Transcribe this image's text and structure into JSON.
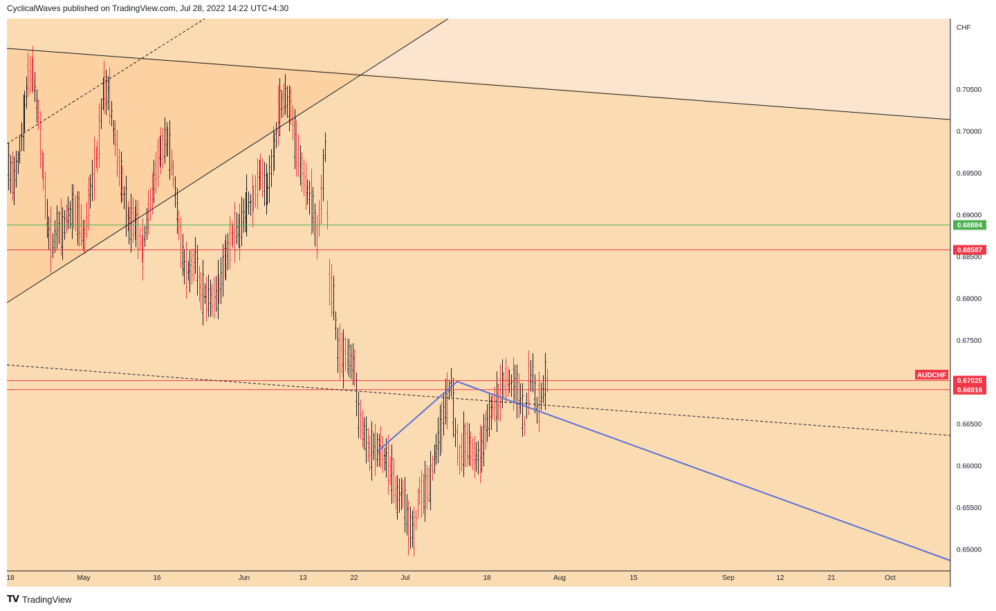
{
  "header": {
    "text": "CyclicalWaves published on TradingView.com, Jul 28, 2022 14:22 UTC+4:30"
  },
  "footer": {
    "logo_text": "TradingView"
  },
  "chart_data": {
    "type": "candlestick",
    "symbol": "AUDCHF",
    "currency_label": "CHF",
    "y_ticks": [
      "0.70500",
      "0.70000",
      "0.69500",
      "0.69000",
      "0.68500",
      "0.68000",
      "0.67500",
      "0.67000",
      "0.66500",
      "0.66000",
      "0.65500",
      "0.65000"
    ],
    "y_tick_values": [
      0.705,
      0.7,
      0.695,
      0.69,
      0.685,
      0.68,
      0.675,
      0.67,
      0.665,
      0.66,
      0.655,
      0.65
    ],
    "ylim": [
      0.6475,
      0.7135
    ],
    "x_ticks": [
      "18",
      "May",
      "16",
      "Jun",
      "13",
      "22",
      "Jul",
      "18",
      "Aug",
      "15",
      "Sep",
      "12",
      "21",
      "Oct"
    ],
    "grid": false,
    "price_levels": [
      {
        "label": "0.68884",
        "value": 0.68884,
        "color": "#4caf50"
      },
      {
        "label": "0.68587",
        "value": 0.68587,
        "color": "#f23645"
      },
      {
        "label": "0.67025",
        "value": 0.67025,
        "color": "#f23645"
      },
      {
        "label": "0.66916",
        "value": 0.66916,
        "color": "#f23645"
      }
    ],
    "symbol_badge_color": "#f23645",
    "up_color": "#131722",
    "down_color": "#f23645",
    "background_color": "#fbdcb2",
    "triangle_fill": "#fcd2a2",
    "upper_zone_fill": "#fbe5cf",
    "trendline_color": "#5b6fd6"
  }
}
